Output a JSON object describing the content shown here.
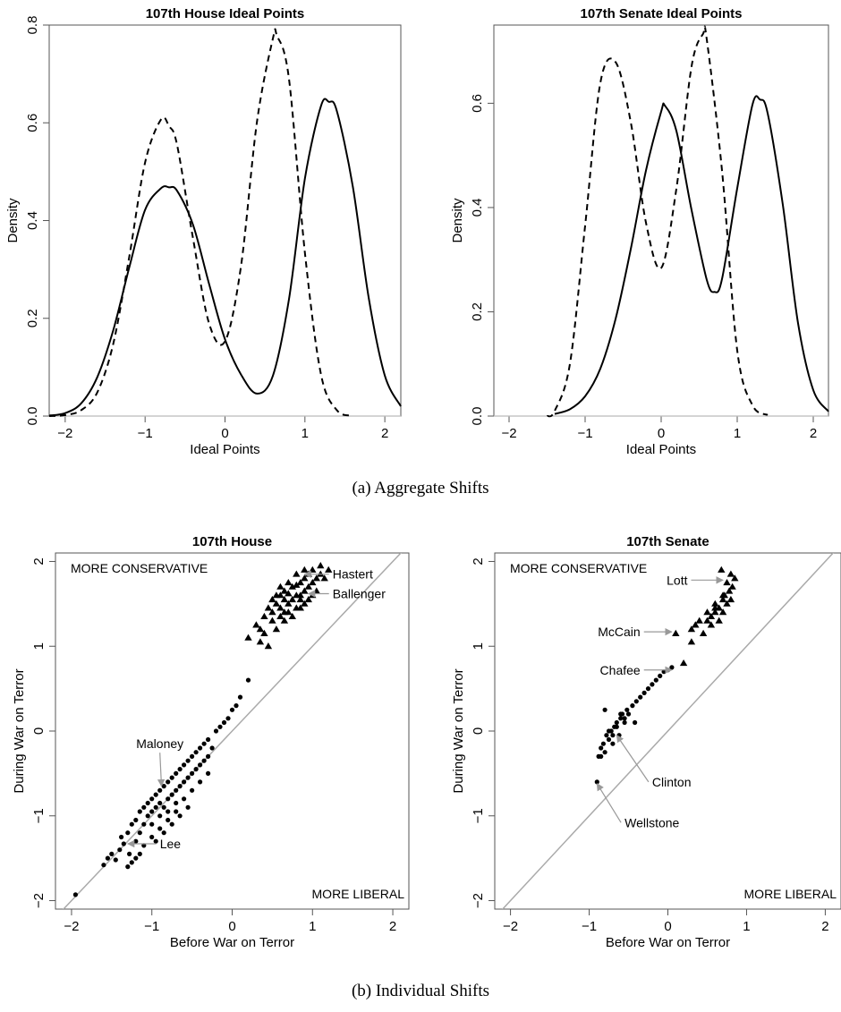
{
  "captions": {
    "a": "(a) Aggregate Shifts",
    "b": "(b) Individual Shifts"
  },
  "colors": {
    "line": "#000000",
    "axis": "#555555",
    "zero": "#bbbbbb",
    "diag": "#aaaaaa"
  },
  "chart_data": [
    {
      "type": "line",
      "title": "107th House Ideal Points",
      "xlabel": "Ideal Points",
      "ylabel": "Density",
      "xlim": [
        -2.2,
        2.2
      ],
      "ylim": [
        0,
        0.8
      ],
      "xticks": [
        -2,
        -1,
        0,
        1,
        2
      ],
      "yticks": [
        0.0,
        0.2,
        0.4,
        0.6,
        0.8
      ],
      "ytick_labels": [
        "0.0",
        "0.2",
        "0.4",
        "0.6",
        "0.8"
      ],
      "series": [
        {
          "style": "solid",
          "x": [
            -2.2,
            -2.0,
            -1.8,
            -1.6,
            -1.4,
            -1.2,
            -1.0,
            -0.8,
            -0.7,
            -0.6,
            -0.4,
            -0.2,
            0.0,
            0.2,
            0.4,
            0.6,
            0.8,
            1.0,
            1.2,
            1.3,
            1.4,
            1.6,
            1.8,
            2.0,
            2.2
          ],
          "y": [
            0.001,
            0.006,
            0.026,
            0.079,
            0.175,
            0.303,
            0.422,
            0.466,
            0.468,
            0.461,
            0.391,
            0.271,
            0.157,
            0.085,
            0.046,
            0.083,
            0.239,
            0.486,
            0.634,
            0.643,
            0.624,
            0.469,
            0.24,
            0.083,
            0.02
          ]
        },
        {
          "style": "dashed",
          "x": [
            -2.2,
            -2.0,
            -1.8,
            -1.6,
            -1.4,
            -1.2,
            -1.0,
            -0.8,
            -0.7,
            -0.6,
            -0.4,
            -0.2,
            0.0,
            0.2,
            0.4,
            0.6,
            0.65,
            0.8,
            1.0,
            1.2,
            1.4,
            1.6
          ],
          "y": [
            0.0,
            0.002,
            0.012,
            0.048,
            0.147,
            0.324,
            0.519,
            0.607,
            0.593,
            0.555,
            0.363,
            0.19,
            0.153,
            0.307,
            0.602,
            0.773,
            0.778,
            0.69,
            0.334,
            0.086,
            0.012,
            0.001
          ]
        }
      ]
    },
    {
      "type": "line",
      "title": "107th Senate Ideal Points",
      "xlabel": "Ideal Points",
      "ylabel": "Density",
      "xlim": [
        -2.2,
        2.2
      ],
      "ylim": [
        0,
        0.75
      ],
      "xticks": [
        -2,
        -1,
        0,
        1,
        2
      ],
      "yticks": [
        0.0,
        0.2,
        0.4,
        0.6
      ],
      "ytick_labels": [
        "0.0",
        "0.2",
        "0.4",
        "0.6"
      ],
      "series": [
        {
          "style": "solid",
          "x": [
            -1.4,
            -1.2,
            -1.0,
            -0.8,
            -0.6,
            -0.4,
            -0.2,
            0.0,
            0.05,
            0.2,
            0.4,
            0.6,
            0.7,
            0.8,
            1.0,
            1.2,
            1.3,
            1.4,
            1.6,
            1.8,
            2.0,
            2.2
          ],
          "y": [
            0.004,
            0.013,
            0.038,
            0.091,
            0.186,
            0.32,
            0.471,
            0.584,
            0.595,
            0.547,
            0.395,
            0.261,
            0.238,
            0.263,
            0.437,
            0.597,
            0.607,
            0.581,
            0.405,
            0.178,
            0.05,
            0.009
          ]
        },
        {
          "style": "dashed",
          "x": [
            -1.5,
            -1.4,
            -1.2,
            -1.0,
            -0.8,
            -0.6,
            -0.4,
            -0.2,
            0.0,
            0.2,
            0.4,
            0.55,
            0.6,
            0.8,
            1.0,
            1.2,
            1.4
          ],
          "y": [
            0.0,
            0.01,
            0.1,
            0.365,
            0.639,
            0.679,
            0.564,
            0.371,
            0.284,
            0.436,
            0.671,
            0.733,
            0.722,
            0.471,
            0.126,
            0.021,
            0.002
          ]
        }
      ]
    },
    {
      "type": "scatter",
      "title": "107th House",
      "xlabel": "Before War on Terror",
      "ylabel": "During War on Terror",
      "xlim": [
        -2.2,
        2.2
      ],
      "ylim": [
        -2.1,
        2.1
      ],
      "xticks": [
        -2,
        -1,
        0,
        1,
        2
      ],
      "yticks": [
        -2,
        -1,
        0,
        1,
        2
      ],
      "corner_labels": {
        "top_left": "MORE  CONSERVATIVE",
        "bottom_right": "MORE  LIBERAL"
      },
      "series": [
        {
          "marker": "circle",
          "x": [
            -1.95,
            -1.6,
            -1.55,
            -1.5,
            -1.45,
            -1.4,
            -1.38,
            -1.35,
            -1.3,
            -1.28,
            -1.25,
            -1.2,
            -1.2,
            -1.15,
            -1.15,
            -1.1,
            -1.1,
            -1.05,
            -1.05,
            -1.0,
            -1.0,
            -1.0,
            -0.95,
            -0.95,
            -0.9,
            -0.9,
            -0.9,
            -0.85,
            -0.85,
            -0.8,
            -0.8,
            -0.8,
            -0.75,
            -0.75,
            -0.7,
            -0.7,
            -0.7,
            -0.65,
            -0.65,
            -0.6,
            -0.6,
            -0.55,
            -0.55,
            -0.5,
            -0.5,
            -0.45,
            -0.45,
            -0.4,
            -0.4,
            -0.35,
            -0.35,
            -0.3,
            -0.3,
            -0.25,
            -0.2,
            -0.15,
            -0.1,
            -0.05,
            0.0,
            0.05,
            0.1,
            0.2,
            -1.3,
            -1.2,
            -1.1,
            -1.0,
            -0.9,
            -0.8,
            -0.7,
            -0.6,
            -0.5,
            -0.4,
            -0.3,
            -0.85,
            -0.95,
            -1.15,
            -1.25,
            -0.55,
            -0.65,
            -0.75
          ],
          "y": [
            -1.93,
            -1.58,
            -1.5,
            -1.45,
            -1.52,
            -1.4,
            -1.25,
            -1.33,
            -1.2,
            -1.45,
            -1.1,
            -1.05,
            -1.3,
            -0.95,
            -1.2,
            -0.9,
            -1.1,
            -0.85,
            -1.0,
            -0.8,
            -0.95,
            -1.1,
            -0.75,
            -0.9,
            -0.7,
            -0.85,
            -1.0,
            -0.65,
            -0.9,
            -0.6,
            -0.8,
            -0.95,
            -0.55,
            -0.75,
            -0.5,
            -0.7,
            -0.85,
            -0.45,
            -0.65,
            -0.4,
            -0.6,
            -0.35,
            -0.55,
            -0.3,
            -0.5,
            -0.25,
            -0.45,
            -0.2,
            -0.4,
            -0.15,
            -0.35,
            -0.1,
            -0.3,
            -0.2,
            0.0,
            0.05,
            0.1,
            0.15,
            0.25,
            0.3,
            0.4,
            0.6,
            -1.6,
            -1.5,
            -1.35,
            -1.25,
            -1.15,
            -1.05,
            -0.95,
            -0.8,
            -0.7,
            -0.6,
            -0.5,
            -1.2,
            -1.3,
            -1.45,
            -1.55,
            -0.9,
            -1.0,
            -1.1
          ]
        },
        {
          "marker": "triangle",
          "x": [
            0.2,
            0.3,
            0.35,
            0.4,
            0.45,
            0.5,
            0.5,
            0.55,
            0.55,
            0.6,
            0.6,
            0.6,
            0.65,
            0.65,
            0.7,
            0.7,
            0.7,
            0.75,
            0.75,
            0.8,
            0.8,
            0.8,
            0.85,
            0.85,
            0.9,
            0.9,
            0.9,
            0.95,
            0.95,
            1.0,
            1.0,
            1.05,
            1.05,
            1.1,
            1.1,
            1.15,
            1.2,
            0.4,
            0.5,
            0.6,
            0.7,
            0.8,
            0.9,
            1.0,
            0.45,
            0.55,
            0.65,
            0.75,
            0.85,
            0.95,
            0.35,
            0.65,
            0.85
          ],
          "y": [
            1.1,
            1.25,
            1.2,
            1.35,
            1.45,
            1.4,
            1.55,
            1.5,
            1.6,
            1.45,
            1.6,
            1.7,
            1.55,
            1.65,
            1.5,
            1.62,
            1.75,
            1.55,
            1.7,
            1.6,
            1.72,
            1.85,
            1.55,
            1.75,
            1.65,
            1.8,
            1.9,
            1.7,
            1.85,
            1.75,
            1.9,
            1.8,
            1.65,
            1.85,
            1.95,
            1.8,
            1.9,
            1.15,
            1.3,
            1.35,
            1.4,
            1.45,
            1.5,
            1.6,
            1.0,
            1.2,
            1.3,
            1.35,
            1.45,
            1.55,
            1.05,
            1.4,
            1.6
          ]
        }
      ],
      "annotations": [
        {
          "text": "Hastert",
          "x": 1.25,
          "y": 1.85,
          "target_x": 0.9,
          "target_y": 1.85
        },
        {
          "text": "Ballenger",
          "x": 1.25,
          "y": 1.62,
          "target_x": 0.95,
          "target_y": 1.62
        },
        {
          "text": "Maloney",
          "x": -0.9,
          "y": -0.15,
          "target_x": -0.88,
          "target_y": -0.65
        },
        {
          "text": "Lee",
          "x": -0.9,
          "y": -1.33,
          "target_x": -1.3,
          "target_y": -1.33
        }
      ]
    },
    {
      "type": "scatter",
      "title": "107th Senate",
      "xlabel": "Before War on Terror",
      "ylabel": "During War on Terror",
      "xlim": [
        -2.2,
        2.2
      ],
      "ylim": [
        -2.1,
        2.1
      ],
      "xticks": [
        -2,
        -1,
        0,
        1,
        2
      ],
      "yticks": [
        -2,
        -1,
        0,
        1,
        2
      ],
      "corner_labels": {
        "top_left": "MORE  CONSERVATIVE",
        "bottom_right": "MORE  LIBERAL"
      },
      "series": [
        {
          "marker": "circle",
          "x": [
            -0.9,
            -0.88,
            -0.85,
            -0.82,
            -0.8,
            -0.78,
            -0.75,
            -0.72,
            -0.7,
            -0.68,
            -0.65,
            -0.62,
            -0.6,
            -0.58,
            -0.55,
            -0.52,
            -0.5,
            -0.45,
            -0.42,
            -0.4,
            -0.35,
            -0.3,
            -0.25,
            -0.2,
            -0.15,
            -0.1,
            -0.05,
            0.0,
            0.05,
            -0.85,
            -0.75,
            -0.65,
            -0.55,
            -0.7,
            -0.8,
            -0.6
          ],
          "y": [
            -0.6,
            -0.3,
            -0.2,
            -0.15,
            -0.25,
            -0.05,
            -0.1,
            0.0,
            -0.15,
            0.05,
            0.1,
            -0.05,
            0.15,
            0.2,
            0.1,
            0.25,
            0.2,
            0.3,
            0.1,
            0.35,
            0.4,
            0.45,
            0.5,
            0.55,
            0.6,
            0.65,
            0.7,
            0.72,
            0.75,
            -0.3,
            0.0,
            0.05,
            0.15,
            -0.05,
            0.25,
            0.2
          ]
        },
        {
          "marker": "triangle",
          "x": [
            0.1,
            0.2,
            0.3,
            0.35,
            0.4,
            0.45,
            0.5,
            0.5,
            0.55,
            0.55,
            0.6,
            0.6,
            0.65,
            0.65,
            0.7,
            0.7,
            0.72,
            0.75,
            0.75,
            0.78,
            0.8,
            0.8,
            0.82,
            0.85,
            0.6,
            0.7,
            0.68,
            0.3
          ],
          "y": [
            1.15,
            0.8,
            1.05,
            1.25,
            1.3,
            1.15,
            1.3,
            1.4,
            1.35,
            1.25,
            1.4,
            1.5,
            1.45,
            1.3,
            1.55,
            1.4,
            1.6,
            1.5,
            1.75,
            1.65,
            1.85,
            1.55,
            1.7,
            1.8,
            1.45,
            1.6,
            1.9,
            1.2
          ]
        }
      ],
      "annotations": [
        {
          "text": "Lott",
          "x": 0.25,
          "y": 1.78,
          "target_x": 0.7,
          "target_y": 1.78
        },
        {
          "text": "McCain",
          "x": -0.35,
          "y": 1.17,
          "target_x": 0.05,
          "target_y": 1.17
        },
        {
          "text": "Chafee",
          "x": -0.35,
          "y": 0.72,
          "target_x": 0.05,
          "target_y": 0.72
        },
        {
          "text": "Clinton",
          "x": -0.2,
          "y": -0.6,
          "target_x": -0.65,
          "target_y": -0.05
        },
        {
          "text": "Wellstone",
          "x": -0.55,
          "y": -1.08,
          "target_x": -0.9,
          "target_y": -0.62
        }
      ]
    }
  ]
}
